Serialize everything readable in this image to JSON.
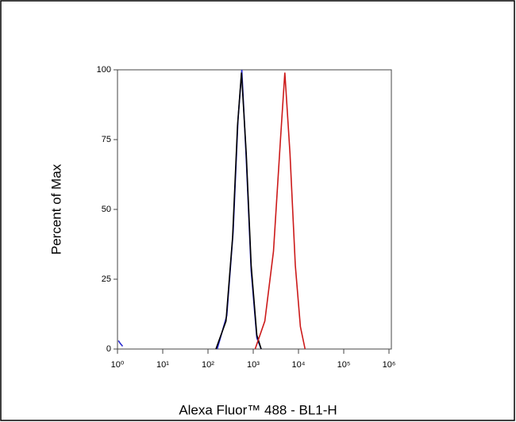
{
  "chart_data": {
    "type": "line",
    "x_label": "Alexa Fluor™ 488 - BL1-H",
    "y_label": "Percent of Max",
    "xscale": "log",
    "xlim": [
      1,
      1000000
    ],
    "xticks": [
      {
        "value": 1,
        "label": "10⁰"
      },
      {
        "value": 10,
        "label": "10¹"
      },
      {
        "value": 100,
        "label": "10²"
      },
      {
        "value": 1000,
        "label": "10³"
      },
      {
        "value": 10000,
        "label": "10⁴"
      },
      {
        "value": 100000,
        "label": "10⁵"
      },
      {
        "value": 1000000,
        "label": "10⁶"
      }
    ],
    "ylim": [
      0,
      100
    ],
    "yticks": [
      0,
      25,
      50,
      75,
      100
    ],
    "series": [
      {
        "color": "#2a2ad0",
        "x": [
          1.05,
          1.15,
          1.3,
          1.5,
          160,
          260,
          360,
          460,
          560,
          700,
          900,
          1200,
          1500
        ],
        "values": [
          3,
          2,
          1,
          null,
          0,
          12,
          42,
          82,
          100,
          68,
          28,
          4,
          0
        ]
      },
      {
        "color": "#000000",
        "x": [
          150,
          250,
          350,
          450,
          550,
          700,
          900,
          1200,
          1500
        ],
        "values": [
          0,
          10,
          40,
          80,
          99,
          70,
          30,
          5,
          0
        ]
      },
      {
        "color": "#cc1a1a",
        "x": [
          1100,
          1800,
          2800,
          4000,
          5000,
          6500,
          8500,
          11000,
          14000
        ],
        "values": [
          0,
          10,
          35,
          75,
          99,
          70,
          30,
          8,
          0
        ]
      }
    ]
  }
}
